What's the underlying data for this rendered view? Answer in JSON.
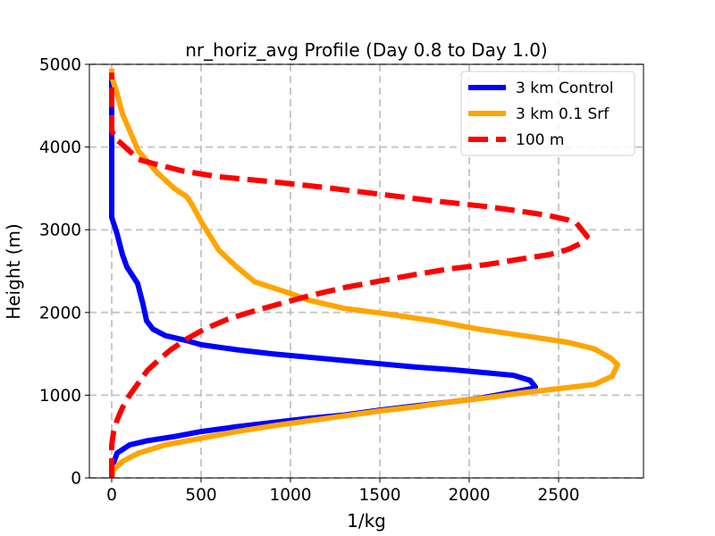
{
  "chart_data": {
    "type": "line",
    "title": "nr_horiz_avg Profile (Day 0.8 to Day 1.0)",
    "xlabel": "1/kg",
    "ylabel": "Height (m)",
    "xlim": [
      -125,
      2975
    ],
    "ylim": [
      0,
      5000
    ],
    "xticks": [
      0,
      500,
      1000,
      1500,
      2000,
      2500
    ],
    "yticks": [
      0,
      1000,
      2000,
      3000,
      4000,
      5000
    ],
    "grid": true,
    "legend_position": "top-right",
    "series": [
      {
        "name": "3 km Control",
        "color": "#0000ff",
        "style": "solid",
        "x": [
          0,
          5,
          30,
          100,
          200,
          350,
          500,
          700,
          900,
          1100,
          1300,
          1500,
          1700,
          1900,
          2050,
          2150,
          2250,
          2310,
          2350,
          2370,
          2340,
          2250,
          2100,
          1900,
          1700,
          1500,
          1300,
          1100,
          900,
          700,
          500,
          420,
          300,
          230,
          195,
          175,
          145,
          85,
          60,
          30,
          0,
          0,
          0,
          0,
          0
        ],
        "y": [
          0,
          150,
          300,
          400,
          450,
          500,
          560,
          620,
          670,
          720,
          760,
          820,
          870,
          920,
          960,
          1000,
          1040,
          1065,
          1080,
          1100,
          1180,
          1240,
          1270,
          1310,
          1340,
          1380,
          1420,
          1460,
          1500,
          1550,
          1610,
          1660,
          1720,
          1800,
          1900,
          2100,
          2350,
          2550,
          2700,
          2950,
          3150,
          3500,
          4000,
          4500,
          4900
        ]
      },
      {
        "name": "3 km 0.1 Srf",
        "color": "#ffa500",
        "style": "solid",
        "x": [
          0,
          10,
          60,
          150,
          300,
          500,
          700,
          900,
          1100,
          1300,
          1500,
          1700,
          1900,
          2100,
          2300,
          2500,
          2700,
          2800,
          2830,
          2790,
          2700,
          2550,
          2300,
          2050,
          1800,
          1550,
          1300,
          1100,
          1000,
          900,
          800,
          700,
          600,
          500,
          450,
          420,
          350,
          250,
          150,
          100,
          60,
          30,
          0,
          0
        ],
        "y": [
          0,
          100,
          200,
          300,
          400,
          480,
          560,
          630,
          690,
          750,
          810,
          860,
          920,
          970,
          1030,
          1080,
          1130,
          1230,
          1370,
          1450,
          1560,
          1640,
          1720,
          1800,
          1900,
          1980,
          2050,
          2150,
          2230,
          2300,
          2370,
          2550,
          2750,
          3100,
          3300,
          3400,
          3500,
          3700,
          3950,
          4200,
          4400,
          4650,
          4850,
          4950
        ]
      },
      {
        "name": "100 m",
        "color": "#ff0000",
        "style": "dashed",
        "x": [
          0,
          0,
          0,
          10,
          30,
          60,
          100,
          150,
          200,
          260,
          330,
          420,
          520,
          650,
          800,
          950,
          1100,
          1300,
          1500,
          1700,
          1900,
          2100,
          2300,
          2450,
          2550,
          2620,
          2660,
          2600,
          2550,
          2450,
          2300,
          2100,
          1800,
          1500,
          1200,
          900,
          600,
          400,
          250,
          150,
          50,
          20,
          0,
          0,
          0,
          0
        ],
        "y": [
          0,
          200,
          400,
          550,
          700,
          850,
          1000,
          1150,
          1300,
          1420,
          1550,
          1680,
          1800,
          1920,
          2020,
          2110,
          2200,
          2300,
          2380,
          2460,
          2530,
          2580,
          2650,
          2700,
          2760,
          2830,
          2920,
          3080,
          3120,
          3170,
          3220,
          3280,
          3350,
          3430,
          3510,
          3580,
          3640,
          3710,
          3790,
          3850,
          4050,
          4100,
          4200,
          4350,
          4600,
          4900
        ]
      }
    ]
  }
}
